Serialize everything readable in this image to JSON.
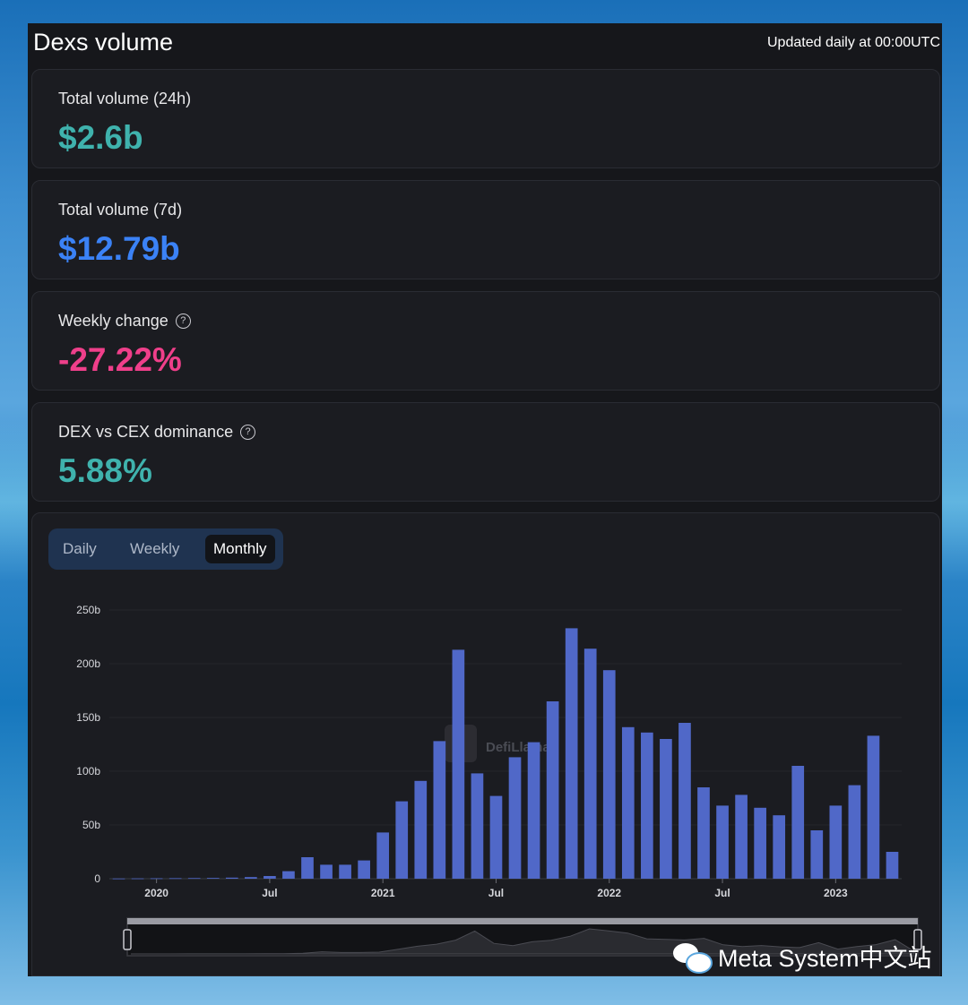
{
  "header": {
    "title": "Dexs volume",
    "updated": "Updated daily at 00:00UTC"
  },
  "cards": [
    {
      "label": "Total volume (24h)",
      "value": "$2.6b",
      "color": "#3fb2ad",
      "help": false
    },
    {
      "label": "Total volume (7d)",
      "value": "$12.79b",
      "color": "#3b82f6",
      "help": false
    },
    {
      "label": "Weekly change",
      "value": "-27.22%",
      "color": "#ef3f8a",
      "help": true
    },
    {
      "label": "DEX vs CEX dominance",
      "value": "5.88%",
      "color": "#3fb2ad",
      "help": true
    }
  ],
  "tabs": {
    "daily": "Daily",
    "weekly": "Weekly",
    "monthly": "Monthly",
    "active": "Monthly"
  },
  "chart_data": {
    "type": "bar",
    "series_color": "#5068c8",
    "ylim": [
      0,
      250
    ],
    "y_ticks": [
      "0",
      "50b",
      "100b",
      "150b",
      "200b",
      "250b"
    ],
    "x_ticks": [
      {
        "label": "2020",
        "index": 2
      },
      {
        "label": "Jul",
        "index": 8
      },
      {
        "label": "2021",
        "index": 14
      },
      {
        "label": "Jul",
        "index": 20
      },
      {
        "label": "2022",
        "index": 26
      },
      {
        "label": "Jul",
        "index": 32
      },
      {
        "label": "2023",
        "index": 38
      }
    ],
    "categories": [
      "2019-11",
      "2019-12",
      "2020-01",
      "2020-02",
      "2020-03",
      "2020-04",
      "2020-05",
      "2020-06",
      "2020-07",
      "2020-08",
      "2020-09",
      "2020-10",
      "2020-11",
      "2020-12",
      "2021-01",
      "2021-02",
      "2021-03",
      "2021-04",
      "2021-05",
      "2021-06",
      "2021-07",
      "2021-08",
      "2021-09",
      "2021-10",
      "2021-11",
      "2021-12",
      "2022-01",
      "2022-02",
      "2022-03",
      "2022-04",
      "2022-05",
      "2022-06",
      "2022-07",
      "2022-08",
      "2022-09",
      "2022-10",
      "2022-11",
      "2022-12",
      "2023-01",
      "2023-02",
      "2023-03",
      "2023-04"
    ],
    "values": [
      0.2,
      0.3,
      0.4,
      0.5,
      0.6,
      0.7,
      1,
      1.5,
      2.5,
      7,
      20,
      13,
      13,
      17,
      43,
      72,
      91,
      128,
      213,
      98,
      77,
      113,
      127,
      165,
      233,
      214,
      194,
      141,
      136,
      130,
      145,
      85,
      68,
      78,
      66,
      59,
      105,
      45,
      68,
      87,
      133,
      25
    ],
    "watermark": "DefiLlama"
  },
  "wechat": {
    "text": "Meta System中文站"
  }
}
